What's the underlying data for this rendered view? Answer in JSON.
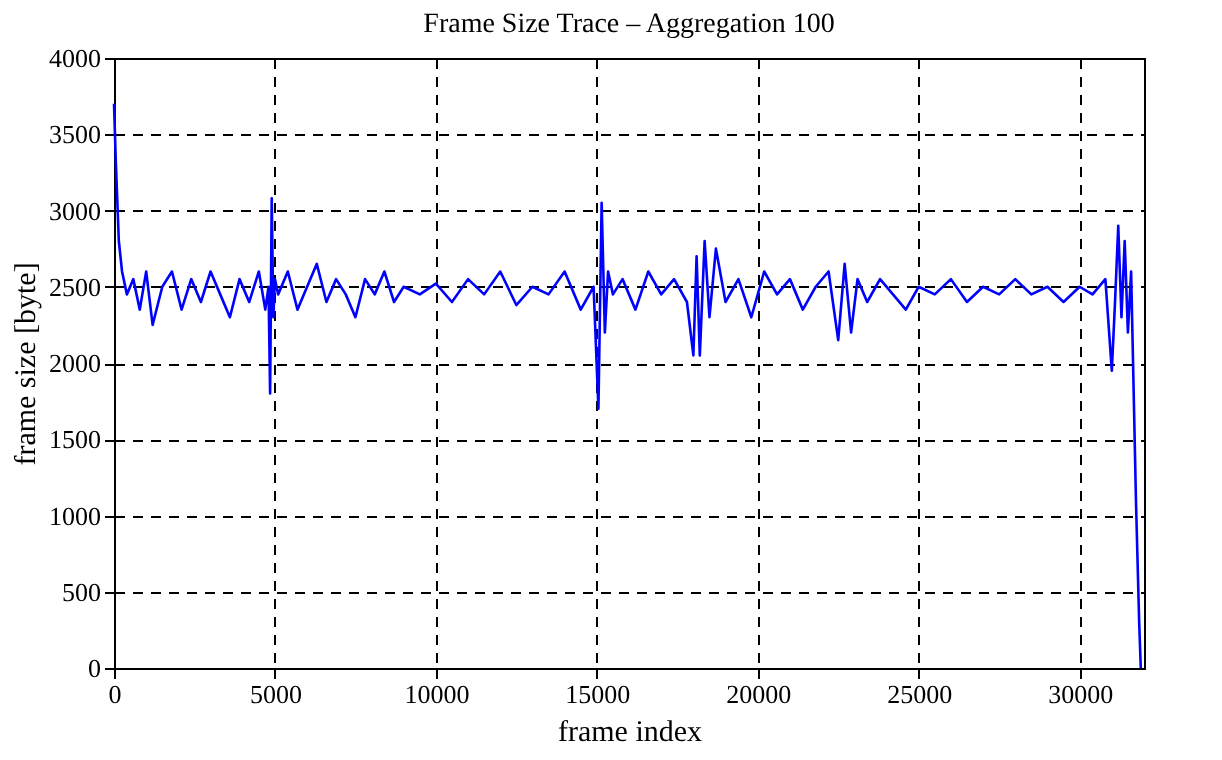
{
  "chart_data": {
    "type": "line",
    "title": "Frame Size Trace – Aggregation 100",
    "xlabel": "frame index",
    "ylabel": "frame size [byte]",
    "x": [
      0,
      60,
      150,
      250,
      400,
      600,
      800,
      1000,
      1200,
      1500,
      1800,
      2100,
      2400,
      2700,
      3000,
      3300,
      3600,
      3900,
      4200,
      4500,
      4700,
      4800,
      4850,
      4900,
      4950,
      5000,
      5100,
      5400,
      5700,
      6000,
      6300,
      6600,
      6900,
      7200,
      7500,
      7800,
      8100,
      8400,
      8700,
      9000,
      9500,
      10000,
      10500,
      11000,
      11500,
      12000,
      12500,
      13000,
      13500,
      14000,
      14500,
      14900,
      15050,
      15150,
      15250,
      15350,
      15500,
      15800,
      16200,
      16600,
      17000,
      17400,
      17800,
      18000,
      18100,
      18200,
      18350,
      18500,
      18700,
      19000,
      19400,
      19800,
      20200,
      20600,
      21000,
      21400,
      21800,
      22200,
      22500,
      22700,
      22900,
      23100,
      23400,
      23800,
      24200,
      24600,
      25000,
      25500,
      26000,
      26500,
      27000,
      27500,
      28000,
      28500,
      29000,
      29500,
      30000,
      30400,
      30800,
      31000,
      31100,
      31200,
      31300,
      31400,
      31500,
      31600,
      31700,
      31750,
      31800,
      31850,
      31900
    ],
    "series": [
      {
        "color": "#0000ff",
        "values": [
          3700,
          3300,
          2800,
          2600,
          2450,
          2550,
          2350,
          2600,
          2250,
          2500,
          2600,
          2350,
          2550,
          2400,
          2600,
          2450,
          2300,
          2550,
          2400,
          2600,
          2350,
          2500,
          1800,
          3080,
          2300,
          2550,
          2450,
          2600,
          2350,
          2500,
          2650,
          2400,
          2550,
          2450,
          2300,
          2550,
          2450,
          2600,
          2400,
          2500,
          2450,
          2520,
          2400,
          2550,
          2450,
          2600,
          2380,
          2500,
          2450,
          2600,
          2350,
          2500,
          1700,
          3050,
          2200,
          2600,
          2450,
          2550,
          2350,
          2600,
          2450,
          2550,
          2400,
          2050,
          2700,
          2050,
          2800,
          2300,
          2750,
          2400,
          2550,
          2300,
          2600,
          2450,
          2550,
          2350,
          2500,
          2600,
          2150,
          2650,
          2200,
          2550,
          2400,
          2550,
          2450,
          2350,
          2500,
          2450,
          2550,
          2400,
          2500,
          2450,
          2550,
          2450,
          2500,
          2400,
          2500,
          2450,
          2550,
          1950,
          2400,
          2900,
          2300,
          2800,
          2200,
          2600,
          1600,
          1100,
          700,
          300,
          0
        ]
      }
    ],
    "xlim": [
      0,
      32000
    ],
    "ylim": [
      0,
      4000
    ],
    "xticks": [
      0,
      5000,
      10000,
      15000,
      20000,
      25000,
      30000
    ],
    "yticks": [
      0,
      500,
      1000,
      1500,
      2000,
      2500,
      3000,
      3500,
      4000
    ],
    "grid": true,
    "line_style": "solid",
    "marker": "none"
  }
}
